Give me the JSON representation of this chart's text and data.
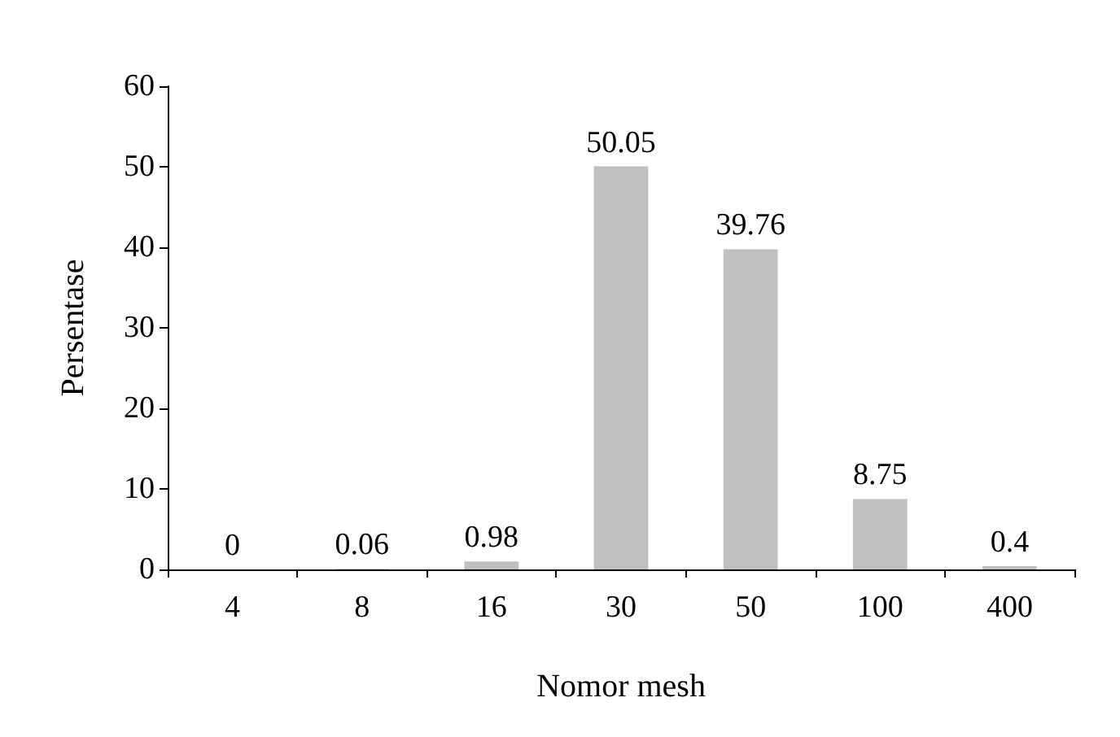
{
  "chart_data": {
    "type": "bar",
    "xlabel": "Nomor mesh",
    "ylabel": "Persentase",
    "categories": [
      "4",
      "8",
      "16",
      "30",
      "50",
      "100",
      "400"
    ],
    "values": [
      0,
      0.06,
      0.98,
      50.05,
      39.76,
      8.75,
      0.4
    ],
    "color": "#c0c0c0",
    "ylim": [
      0,
      60
    ],
    "yticks": [
      0,
      10,
      20,
      30,
      40,
      50,
      60
    ],
    "grid": false,
    "data_labels": true
  }
}
